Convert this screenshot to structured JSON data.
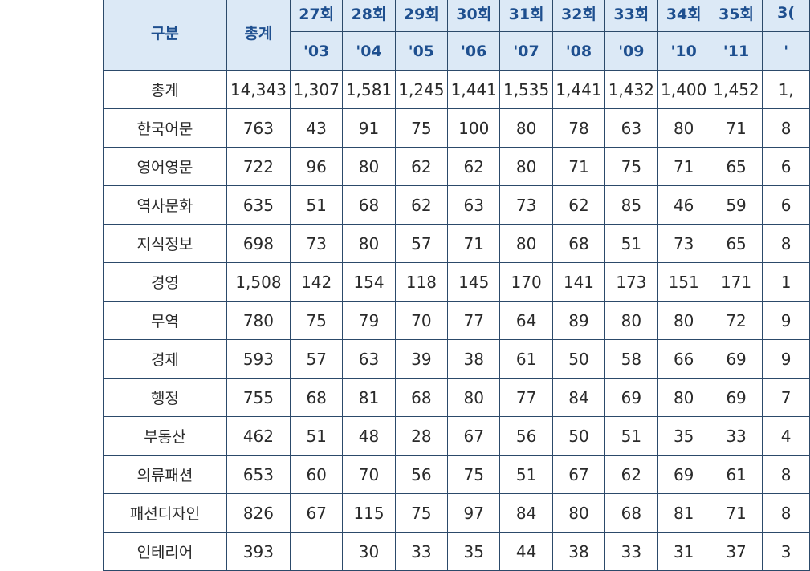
{
  "table": {
    "header": {
      "category": "구분",
      "total": "총계",
      "sessions": [
        "27회",
        "28회",
        "29회",
        "30회",
        "31회",
        "32회",
        "33회",
        "34회",
        "35회",
        "3("
      ],
      "years": [
        "'03",
        "'04",
        "'05",
        "'06",
        "'07",
        "'08",
        "'09",
        "'10",
        "'11",
        "'"
      ]
    },
    "rows": [
      {
        "label": "총계",
        "cells": [
          "14,343",
          "1,307",
          "1,581",
          "1,245",
          "1,441",
          "1,535",
          "1,441",
          "1,432",
          "1,400",
          "1,452",
          "1,"
        ]
      },
      {
        "label": "한국어문",
        "cells": [
          "763",
          "43",
          "91",
          "75",
          "100",
          "80",
          "78",
          "63",
          "80",
          "71",
          "8"
        ]
      },
      {
        "label": "영어영문",
        "cells": [
          "722",
          "96",
          "80",
          "62",
          "62",
          "80",
          "71",
          "75",
          "71",
          "65",
          "6"
        ]
      },
      {
        "label": "역사문화",
        "cells": [
          "635",
          "51",
          "68",
          "62",
          "63",
          "73",
          "62",
          "85",
          "46",
          "59",
          "6"
        ]
      },
      {
        "label": "지식정보",
        "cells": [
          "698",
          "73",
          "80",
          "57",
          "71",
          "80",
          "68",
          "51",
          "73",
          "65",
          "8"
        ]
      },
      {
        "label": "경영",
        "cells": [
          "1,508",
          "142",
          "154",
          "118",
          "145",
          "170",
          "141",
          "173",
          "151",
          "171",
          "1"
        ]
      },
      {
        "label": "무역",
        "cells": [
          "780",
          "75",
          "79",
          "70",
          "77",
          "64",
          "89",
          "80",
          "80",
          "72",
          "9"
        ]
      },
      {
        "label": "경제",
        "cells": [
          "593",
          "57",
          "63",
          "39",
          "38",
          "61",
          "50",
          "58",
          "66",
          "69",
          "9"
        ]
      },
      {
        "label": "행정",
        "cells": [
          "755",
          "68",
          "81",
          "68",
          "80",
          "77",
          "84",
          "69",
          "80",
          "69",
          "7"
        ]
      },
      {
        "label": "부동산",
        "cells": [
          "462",
          "51",
          "48",
          "28",
          "67",
          "56",
          "50",
          "51",
          "35",
          "33",
          "4"
        ]
      },
      {
        "label": "의류패션",
        "cells": [
          "653",
          "60",
          "70",
          "56",
          "75",
          "51",
          "67",
          "62",
          "69",
          "61",
          "8"
        ]
      },
      {
        "label": "패션디자인",
        "cells": [
          "826",
          "67",
          "115",
          "75",
          "97",
          "84",
          "80",
          "68",
          "81",
          "71",
          "8"
        ]
      },
      {
        "label": "인테리어",
        "cells": [
          "393",
          "",
          "30",
          "33",
          "35",
          "44",
          "38",
          "33",
          "31",
          "37",
          "3"
        ]
      }
    ]
  }
}
